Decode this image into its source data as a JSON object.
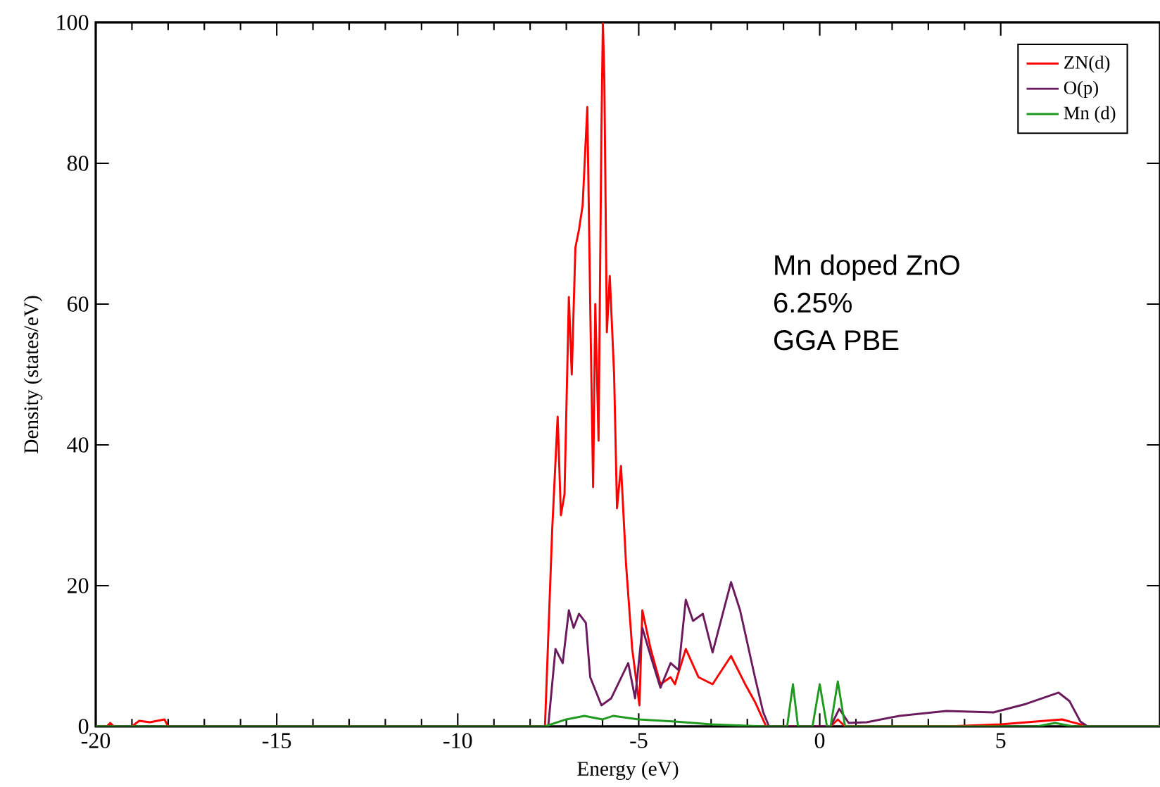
{
  "chart_data": {
    "type": "line",
    "xlabel": "Energy (eV)",
    "ylabel": "Density (states/eV)",
    "xlim": [
      -20,
      9.4
    ],
    "ylim": [
      0,
      100
    ],
    "xticks": [
      -20,
      -15,
      -10,
      -5,
      0,
      5
    ],
    "yticks": [
      0,
      20,
      40,
      60,
      80,
      100
    ],
    "legend": "top right",
    "grid": false,
    "marker": "none",
    "line_style": "solid",
    "annotations": [
      "Mn doped ZnO",
      "6.25%",
      "GGA PBE"
    ],
    "series": [
      {
        "name": "ZN(d)",
        "color": "#ff0000",
        "x": [
          -20,
          -19.7,
          -19.6,
          -19.5,
          -19,
          -18.8,
          -18.5,
          -18.1,
          -18,
          -7.7,
          -7.59,
          -7.39,
          -7.24,
          -7.15,
          -7.05,
          -6.93,
          -6.85,
          -6.75,
          -6.65,
          -6.55,
          -6.42,
          -6.34,
          -6.26,
          -6.2,
          -6.11,
          -6.03,
          -5.99,
          -5.95,
          -5.88,
          -5.8,
          -5.68,
          -5.6,
          -5.49,
          -5.35,
          -5.18,
          -4.98,
          -4.9,
          -4.67,
          -4.4,
          -4.12,
          -4.0,
          -3.7,
          -3.35,
          -2.96,
          -2.45,
          -2.06,
          -1.79,
          -1.48,
          0.3,
          0.5,
          0.7,
          3.5,
          5,
          6.7,
          7.4,
          9.4
        ],
        "values": [
          0,
          0,
          0.5,
          0,
          0,
          0.8,
          0.6,
          1,
          0,
          0,
          0,
          28,
          44,
          30,
          33,
          61,
          50,
          68,
          70.6,
          74,
          88,
          60,
          34,
          60,
          40.6,
          85,
          100,
          92,
          56,
          64,
          50,
          31,
          37,
          23,
          11,
          3,
          16.5,
          11,
          6,
          7,
          6,
          11,
          7,
          6,
          10,
          6,
          3.5,
          0,
          0,
          1,
          0,
          0,
          0.3,
          1,
          0,
          0
        ]
      },
      {
        "name": "O(p)",
        "color": "#6b1a5e",
        "x": [
          -20,
          -7.6,
          -7.5,
          -7.3,
          -7.1,
          -6.93,
          -6.8,
          -6.65,
          -6.46,
          -6.34,
          -6.03,
          -5.76,
          -5.29,
          -5.1,
          -4.9,
          -4.67,
          -4.4,
          -4.12,
          -3.9,
          -3.7,
          -3.5,
          -3.23,
          -2.96,
          -2.45,
          -2.2,
          -1.79,
          -1.56,
          -1.4,
          0.3,
          0.54,
          0.8,
          1.3,
          2.2,
          3.5,
          4.8,
          5.7,
          6.6,
          6.9,
          7.2,
          7.4,
          9.4
        ],
        "values": [
          0,
          0,
          0,
          11,
          9,
          16.5,
          14,
          16,
          14.7,
          7,
          3,
          4,
          9,
          4,
          14,
          10,
          5.5,
          9,
          8,
          18,
          15,
          16,
          10.5,
          20.5,
          16.5,
          7,
          2,
          0,
          0,
          2.5,
          0.5,
          0.6,
          1.5,
          2.2,
          2,
          3.2,
          4.8,
          3.6,
          0.7,
          0,
          0
        ]
      },
      {
        "name": "Mn (d)",
        "color": "#1f9a1f",
        "x": [
          -20,
          -7.6,
          -7,
          -6.5,
          -6,
          -5.7,
          -5,
          -4,
          -3,
          -1.5,
          -0.9,
          -0.74,
          -0.6,
          -0.2,
          0,
          0.2,
          0.3,
          0.5,
          0.7,
          0.8,
          6,
          6.5,
          7,
          9.4
        ],
        "values": [
          0,
          0,
          1,
          1.5,
          1,
          1.5,
          1,
          0.7,
          0.3,
          0,
          0,
          6,
          0,
          0,
          6,
          0,
          0,
          6.4,
          0,
          0,
          0,
          0.5,
          0,
          0
        ]
      }
    ]
  }
}
